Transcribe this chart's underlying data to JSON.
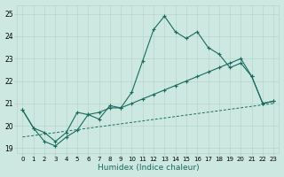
{
  "xlabel": "Humidex (Indice chaleur)",
  "xlim": [
    -0.5,
    23.5
  ],
  "ylim": [
    18.8,
    25.4
  ],
  "yticks": [
    19,
    20,
    21,
    22,
    23,
    24,
    25
  ],
  "xticks": [
    0,
    1,
    2,
    3,
    4,
    5,
    6,
    7,
    8,
    9,
    10,
    11,
    12,
    13,
    14,
    15,
    16,
    17,
    18,
    19,
    20,
    21,
    22,
    23
  ],
  "bg_color": "#cce8e0",
  "line_color": "#1a6b5e",
  "grid_color": "#b8d4cc",
  "line1_x": [
    0,
    1,
    2,
    3,
    4,
    5,
    6,
    7,
    8,
    9,
    10,
    11,
    12,
    13,
    14,
    15,
    16,
    17,
    18,
    19,
    20,
    21,
    22,
    23
  ],
  "line1_y": [
    20.7,
    19.9,
    19.7,
    19.3,
    19.7,
    20.6,
    20.5,
    20.3,
    20.9,
    20.8,
    21.5,
    22.9,
    24.3,
    24.9,
    24.2,
    23.9,
    24.2,
    23.5,
    23.2,
    22.6,
    22.8,
    22.2,
    21.0,
    21.1
  ],
  "line2_x": [
    0,
    23
  ],
  "line2_y": [
    19.5,
    21.0
  ],
  "line3_x": [
    0,
    1,
    2,
    3,
    4,
    5,
    6,
    7,
    8,
    9,
    10,
    11,
    12,
    13,
    14,
    15,
    16,
    17,
    18,
    19,
    20,
    21,
    22,
    23
  ],
  "line3_y": [
    20.7,
    19.9,
    19.3,
    19.1,
    19.5,
    19.8,
    20.5,
    20.6,
    20.8,
    20.8,
    21.0,
    21.2,
    21.4,
    21.6,
    21.8,
    22.0,
    22.2,
    22.4,
    22.6,
    22.8,
    23.0,
    22.2,
    21.0,
    21.1
  ]
}
